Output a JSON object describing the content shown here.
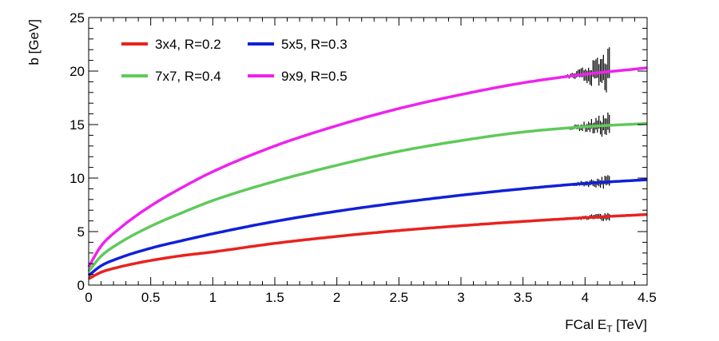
{
  "chart_data": {
    "type": "line",
    "title": "",
    "xlabel": {
      "main": "FCal E",
      "sub": "T",
      "unit": " [TeV]"
    },
    "ylabel": "b [GeV]",
    "xlim": [
      0,
      4.5
    ],
    "ylim": [
      0,
      25
    ],
    "x_ticks": [
      0,
      0.5,
      1,
      1.5,
      2,
      2.5,
      3,
      3.5,
      4,
      4.5
    ],
    "x_tick_labels": [
      "0",
      "0.5",
      "1",
      "1.5",
      "2",
      "2.5",
      "3",
      "3.5",
      "4",
      "4.5"
    ],
    "y_ticks": [
      0,
      5,
      10,
      15,
      20,
      25
    ],
    "y_tick_labels": [
      "0",
      "5",
      "10",
      "15",
      "20",
      "25"
    ],
    "grid": false,
    "legend_position": "top-left",
    "x": [
      0,
      0.1,
      0.25,
      0.5,
      0.75,
      1.0,
      1.5,
      2.0,
      2.5,
      3.0,
      3.5,
      4.0,
      4.5
    ],
    "series": [
      {
        "name": "3x4, R=0.2",
        "color": "#e8221e",
        "values": [
          0.6,
          1.2,
          1.7,
          2.3,
          2.75,
          3.1,
          3.9,
          4.55,
          5.1,
          5.55,
          5.95,
          6.3,
          6.6
        ]
      },
      {
        "name": "5x5, R=0.3",
        "color": "#1020d8",
        "values": [
          0.9,
          1.8,
          2.55,
          3.45,
          4.15,
          4.8,
          5.95,
          6.9,
          7.7,
          8.4,
          9.0,
          9.5,
          9.85
        ]
      },
      {
        "name": "7x7, R=0.4",
        "color": "#5fca5a",
        "values": [
          1.3,
          2.7,
          3.95,
          5.5,
          6.75,
          7.9,
          9.7,
          11.2,
          12.5,
          13.5,
          14.3,
          14.8,
          15.1
        ]
      },
      {
        "name": "9x9, R=0.5",
        "color": "#ee22ee",
        "values": [
          1.7,
          3.65,
          5.3,
          7.4,
          9.1,
          10.6,
          13.0,
          14.9,
          16.5,
          17.8,
          18.9,
          19.7,
          20.3
        ]
      }
    ],
    "data_points": {
      "color": "#000000",
      "x_range": [
        0,
        4.2
      ],
      "note_series_follow_curves": true
    }
  }
}
